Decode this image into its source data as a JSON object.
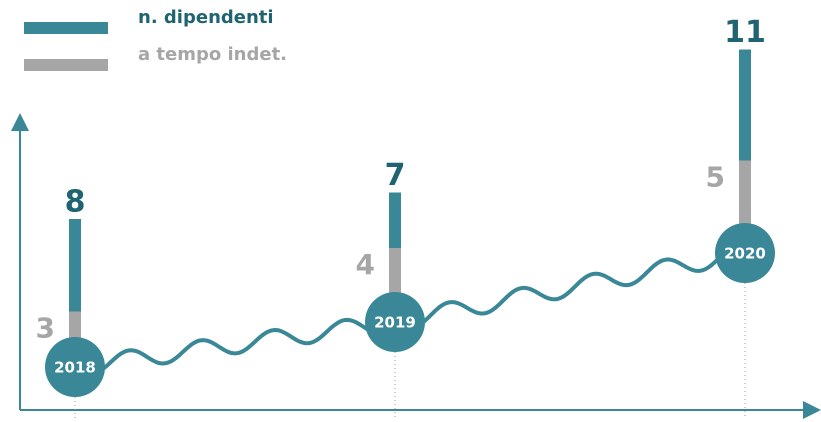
{
  "chart_data": {
    "type": "bar",
    "categories": [
      "2018",
      "2019",
      "2020"
    ],
    "series": [
      {
        "name": "n. dipendenti",
        "color": "#3a8797",
        "values": [
          8,
          7,
          11
        ]
      },
      {
        "name": "a tempo indet.",
        "color": "#a6a6a6",
        "values": [
          3,
          4,
          5
        ]
      }
    ]
  }
}
